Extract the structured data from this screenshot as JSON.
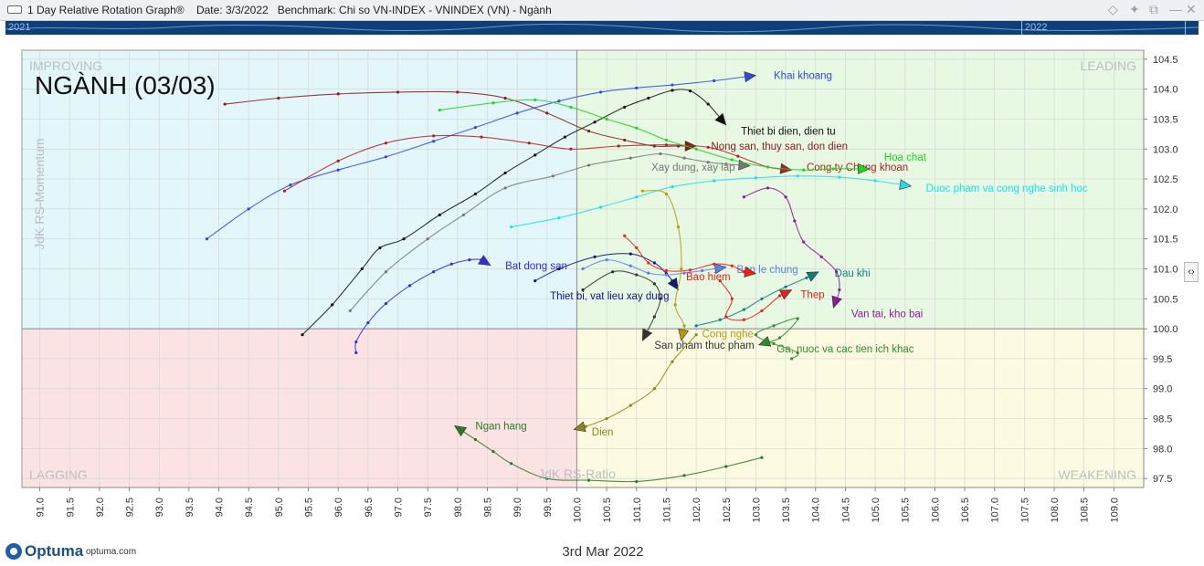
{
  "window": {
    "title": "1 Day Relative Rotation Graph®",
    "date": "Date: 3/3/2022",
    "benchmark": "Benchmark:  Chi so VN-INDEX - VNINDEX (VN) - Ngành"
  },
  "timebar": {
    "left_label": "2021",
    "right_label": "2022"
  },
  "footer": {
    "brand": "Optuma",
    "site": "optuma.com",
    "date": "3rd Mar 2022"
  },
  "colors": {
    "improving": "#e3f7fb",
    "leading": "#e7f9e3",
    "lagging": "#fbe3e3",
    "weakening": "#fcfbe1",
    "timebar": "#0e3f78",
    "logo": "#1b5fa8"
  },
  "chart_data": {
    "type": "scatter",
    "title": "NGÀNH (03/03)",
    "xlabel": "JdK RS-Ratio",
    "ylabel": "JdK RS-Momentum",
    "xlim": [
      90.7,
      109.5
    ],
    "ylim": [
      97.35,
      104.65
    ],
    "center": [
      100,
      100
    ],
    "xticks": [
      91.0,
      91.5,
      92.0,
      92.5,
      93.0,
      93.5,
      94.0,
      94.5,
      95.0,
      95.5,
      96.0,
      96.5,
      97.0,
      97.5,
      98.0,
      98.5,
      99.0,
      99.5,
      100.0,
      100.5,
      101.0,
      101.5,
      102.0,
      102.5,
      103.0,
      103.5,
      104.0,
      104.5,
      105.0,
      105.5,
      106.0,
      106.5,
      107.0,
      107.5,
      108.0,
      108.5,
      109.0
    ],
    "yticks": [
      97.5,
      98.0,
      98.5,
      99.0,
      99.5,
      100.0,
      100.5,
      101.0,
      101.5,
      102.0,
      102.5,
      103.0,
      103.5,
      104.0,
      104.5
    ],
    "grid": true,
    "quadrants": {
      "improving": "IMPROVING",
      "leading": "LEADING",
      "lagging": "LAGGING",
      "weakening": "WEAKENING"
    },
    "series": [
      {
        "name": "Khai khoang",
        "color": "#2f49e0",
        "label_pos": [
          103.3,
          104.23
        ],
        "points": [
          [
            93.8,
            101.5
          ],
          [
            94.5,
            102.0
          ],
          [
            95.2,
            102.4
          ],
          [
            96.0,
            102.65
          ],
          [
            96.8,
            102.87
          ],
          [
            97.6,
            103.13
          ],
          [
            98.3,
            103.36
          ],
          [
            99.0,
            103.6
          ],
          [
            99.7,
            103.8
          ],
          [
            100.4,
            103.95
          ],
          [
            101.0,
            104.02
          ],
          [
            101.6,
            104.07
          ],
          [
            102.3,
            104.14
          ],
          [
            103.0,
            104.23
          ]
        ]
      },
      {
        "name": "Thiet bi dien, dien tu",
        "color": "#111111",
        "label_pos": [
          102.75,
          103.3
        ],
        "points": [
          [
            95.4,
            99.9
          ],
          [
            95.9,
            100.4
          ],
          [
            96.4,
            101.0
          ],
          [
            96.7,
            101.35
          ],
          [
            97.1,
            101.5
          ],
          [
            97.7,
            101.9
          ],
          [
            98.3,
            102.25
          ],
          [
            98.8,
            102.6
          ],
          [
            99.3,
            102.9
          ],
          [
            99.8,
            103.2
          ],
          [
            100.3,
            103.45
          ],
          [
            100.8,
            103.7
          ],
          [
            101.2,
            103.85
          ],
          [
            101.6,
            103.98
          ],
          [
            101.9,
            103.97
          ],
          [
            102.2,
            103.75
          ],
          [
            102.5,
            103.4
          ]
        ]
      },
      {
        "name": "Nong san, thuy san, don dien",
        "color": "#8b1a1a",
        "label_pos": [
          102.25,
          103.05
        ],
        "points": [
          [
            94.1,
            103.75
          ],
          [
            95.0,
            103.85
          ],
          [
            96.0,
            103.92
          ],
          [
            97.0,
            103.95
          ],
          [
            98.0,
            103.95
          ],
          [
            98.8,
            103.85
          ],
          [
            99.5,
            103.6
          ],
          [
            100.2,
            103.3
          ],
          [
            100.8,
            103.15
          ],
          [
            101.3,
            103.05
          ],
          [
            101.7,
            103.05
          ],
          [
            102.0,
            103.05
          ]
        ]
      },
      {
        "name": "Xay dung, xay lap",
        "color": "#777777",
        "label_pos": [
          101.25,
          102.7
        ],
        "points": [
          [
            96.2,
            100.3
          ],
          [
            96.8,
            100.95
          ],
          [
            97.5,
            101.5
          ],
          [
            98.1,
            101.9
          ],
          [
            98.8,
            102.35
          ],
          [
            99.6,
            102.55
          ],
          [
            100.2,
            102.73
          ],
          [
            100.9,
            102.85
          ],
          [
            101.4,
            102.92
          ],
          [
            101.8,
            102.85
          ],
          [
            102.2,
            102.78
          ],
          [
            102.5,
            102.75
          ],
          [
            102.9,
            102.72
          ]
        ]
      },
      {
        "name": "Cong ty Chung khoan",
        "color": "#b02222",
        "label_pos": [
          103.85,
          102.7
        ],
        "points": [
          [
            95.1,
            102.3
          ],
          [
            96.0,
            102.8
          ],
          [
            96.8,
            103.1
          ],
          [
            97.6,
            103.22
          ],
          [
            98.4,
            103.2
          ],
          [
            99.2,
            103.1
          ],
          [
            99.9,
            103.0
          ],
          [
            100.7,
            103.05
          ],
          [
            101.5,
            103.07
          ],
          [
            102.2,
            103.03
          ],
          [
            102.7,
            102.88
          ],
          [
            103.2,
            102.7
          ],
          [
            103.6,
            102.65
          ]
        ]
      },
      {
        "name": "Hoa chat",
        "color": "#22d422",
        "label_pos": [
          105.15,
          102.87
        ],
        "points": [
          [
            97.7,
            103.65
          ],
          [
            98.6,
            103.77
          ],
          [
            99.3,
            103.82
          ],
          [
            99.9,
            103.7
          ],
          [
            100.5,
            103.5
          ],
          [
            101.0,
            103.35
          ],
          [
            101.5,
            103.15
          ],
          [
            102.0,
            103.0
          ],
          [
            102.6,
            102.82
          ],
          [
            103.2,
            102.7
          ],
          [
            103.8,
            102.65
          ],
          [
            104.3,
            102.67
          ],
          [
            104.9,
            102.67
          ]
        ]
      },
      {
        "name": "Duoc pham va cong nghe sinh hoc",
        "color": "#1ae0ee",
        "label_pos": [
          105.85,
          102.35
        ],
        "points": [
          [
            98.9,
            101.7
          ],
          [
            99.7,
            101.85
          ],
          [
            100.4,
            102.03
          ],
          [
            101.0,
            102.2
          ],
          [
            101.6,
            102.37
          ],
          [
            102.3,
            102.47
          ],
          [
            103.0,
            102.52
          ],
          [
            103.7,
            102.55
          ],
          [
            104.4,
            102.53
          ],
          [
            105.0,
            102.47
          ],
          [
            105.6,
            102.38
          ]
        ]
      },
      {
        "name": "Bat dong san",
        "color": "#2f2fe0",
        "label_pos": [
          98.8,
          101.05
        ],
        "points": [
          [
            96.3,
            99.6
          ],
          [
            96.3,
            99.78
          ],
          [
            96.5,
            100.1
          ],
          [
            96.8,
            100.42
          ],
          [
            97.2,
            100.72
          ],
          [
            97.6,
            100.95
          ],
          [
            97.9,
            101.08
          ],
          [
            98.2,
            101.15
          ],
          [
            98.4,
            101.15
          ],
          [
            98.55,
            101.06
          ]
        ]
      },
      {
        "name": "Thiet bi, vat lieu xay dung",
        "color": "#151580",
        "label_pos": [
          99.55,
          100.55
        ],
        "points": [
          [
            99.3,
            100.8
          ],
          [
            99.7,
            101.0
          ],
          [
            100.3,
            101.2
          ],
          [
            100.9,
            101.25
          ],
          [
            101.3,
            101.1
          ],
          [
            101.5,
            100.92
          ],
          [
            101.6,
            100.8
          ],
          [
            101.7,
            100.65
          ]
        ]
      },
      {
        "name": "Ban le chung",
        "color": "#5f7fe8",
        "label_pos": [
          102.68,
          100.99
        ],
        "points": [
          [
            100.1,
            101.0
          ],
          [
            100.5,
            101.15
          ],
          [
            100.9,
            101.05
          ],
          [
            101.2,
            100.93
          ],
          [
            101.5,
            100.9
          ],
          [
            101.8,
            100.93
          ],
          [
            102.1,
            100.97
          ],
          [
            102.5,
            101.03
          ]
        ]
      },
      {
        "name": "Bao hiem",
        "color": "#f0201b",
        "label_pos": [
          101.83,
          100.87
        ],
        "points": [
          [
            100.8,
            101.55
          ],
          [
            101.0,
            101.35
          ],
          [
            101.2,
            101.1
          ],
          [
            101.5,
            100.97
          ],
          [
            101.9,
            100.98
          ],
          [
            102.3,
            101.08
          ],
          [
            102.6,
            101.05
          ],
          [
            102.8,
            100.95
          ],
          [
            103.0,
            100.92
          ]
        ]
      },
      {
        "name": "Dau khi",
        "color": "#127d7d",
        "label_pos": [
          104.32,
          100.93
        ],
        "points": [
          [
            102.0,
            100.05
          ],
          [
            102.4,
            100.15
          ],
          [
            102.8,
            100.32
          ],
          [
            103.1,
            100.5
          ],
          [
            103.5,
            100.7
          ],
          [
            103.85,
            100.85
          ],
          [
            104.05,
            100.95
          ]
        ]
      },
      {
        "name": "Thep",
        "color": "#e62020",
        "label_pos": [
          103.75,
          100.57
        ],
        "points": [
          [
            102.4,
            100.8
          ],
          [
            102.6,
            100.5
          ],
          [
            102.5,
            100.2
          ],
          [
            102.8,
            100.15
          ],
          [
            103.1,
            100.3
          ],
          [
            103.4,
            100.55
          ],
          [
            103.6,
            100.65
          ]
        ]
      },
      {
        "name": "Van tai, kho bai",
        "color": "#8e1a9e",
        "label_pos": [
          104.6,
          100.25
        ],
        "points": [
          [
            102.8,
            102.2
          ],
          [
            103.2,
            102.35
          ],
          [
            103.5,
            102.2
          ],
          [
            103.65,
            101.8
          ],
          [
            103.8,
            101.45
          ],
          [
            104.1,
            101.2
          ],
          [
            104.35,
            100.95
          ],
          [
            104.4,
            100.65
          ],
          [
            104.3,
            100.35
          ]
        ]
      },
      {
        "name": "Cong nghe",
        "color": "#b89a10",
        "label_pos": [
          102.1,
          99.92
        ],
        "points": [
          [
            101.1,
            102.3
          ],
          [
            101.5,
            102.25
          ],
          [
            101.7,
            101.7
          ],
          [
            101.75,
            101.0
          ],
          [
            101.65,
            100.4
          ],
          [
            101.8,
            100.05
          ],
          [
            101.75,
            99.8
          ]
        ]
      },
      {
        "name": "San pham thuc pham",
        "color": "#333333",
        "label_pos": [
          101.3,
          99.73
        ],
        "points": [
          [
            100.1,
            100.65
          ],
          [
            100.6,
            100.95
          ],
          [
            101.0,
            100.9
          ],
          [
            101.3,
            100.75
          ],
          [
            101.4,
            100.5
          ],
          [
            101.3,
            100.2
          ],
          [
            101.1,
            99.8
          ]
        ]
      },
      {
        "name": "Ga, nuoc va cac tien ich khac",
        "color": "#2e8b2e",
        "label_pos": [
          103.35,
          99.67
        ],
        "points": [
          [
            103.6,
            99.5
          ],
          [
            103.7,
            99.6
          ],
          [
            103.3,
            99.75
          ],
          [
            103.0,
            99.9
          ],
          [
            103.3,
            100.05
          ],
          [
            103.7,
            100.17
          ],
          [
            103.4,
            99.85
          ],
          [
            103.05,
            99.73
          ]
        ]
      },
      {
        "name": "Ngan hang",
        "color": "#2a7a2a",
        "label_pos": [
          98.3,
          98.38
        ],
        "points": [
          [
            103.1,
            97.85
          ],
          [
            102.5,
            97.7
          ],
          [
            101.8,
            97.55
          ],
          [
            101.0,
            97.45
          ],
          [
            100.2,
            97.47
          ],
          [
            99.5,
            97.5
          ],
          [
            98.9,
            97.75
          ],
          [
            98.6,
            97.95
          ],
          [
            98.3,
            98.15
          ],
          [
            97.95,
            98.38
          ]
        ]
      },
      {
        "name": "Dien",
        "color": "#88881a",
        "label_pos": [
          100.25,
          98.28
        ],
        "points": [
          [
            102.0,
            99.9
          ],
          [
            101.6,
            99.45
          ],
          [
            101.3,
            99.0
          ],
          [
            100.9,
            98.72
          ],
          [
            100.5,
            98.5
          ],
          [
            100.15,
            98.37
          ],
          [
            99.95,
            98.32
          ]
        ]
      }
    ]
  }
}
